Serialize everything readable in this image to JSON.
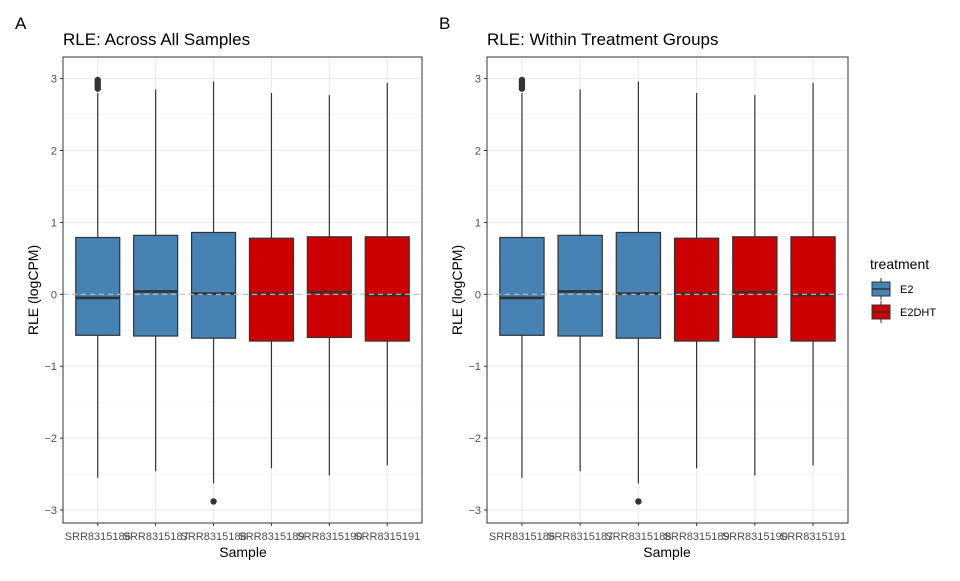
{
  "chart_data": [
    {
      "type": "boxplot",
      "panel_tag": "A",
      "title": "RLE: Across All Samples",
      "xlabel": "Sample",
      "ylabel": "RLE (logCPM)",
      "ylim": [
        -3.18,
        3.3
      ],
      "yticks": [
        -3,
        -2,
        -1,
        0,
        1,
        2,
        3
      ],
      "reference_line": 0,
      "grid": true,
      "boxes": [
        {
          "sample": "SRR8315186",
          "treatment": "E2",
          "q1": -0.57,
          "median": -0.05,
          "q3": 0.79,
          "whisker_low": -2.55,
          "whisker_high": 2.8,
          "outliers": [
            2.86,
            2.89,
            2.92,
            2.95,
            2.98
          ]
        },
        {
          "sample": "SRR8315187",
          "treatment": "E2",
          "q1": -0.58,
          "median": 0.04,
          "q3": 0.82,
          "whisker_low": -2.46,
          "whisker_high": 2.85,
          "outliers": []
        },
        {
          "sample": "SRR8315188",
          "treatment": "E2",
          "q1": -0.61,
          "median": 0.01,
          "q3": 0.86,
          "whisker_low": -2.63,
          "whisker_high": 2.96,
          "outliers": [
            -2.88
          ]
        },
        {
          "sample": "SRR8315189",
          "treatment": "E2DHT",
          "q1": -0.65,
          "median": 0.01,
          "q3": 0.78,
          "whisker_low": -2.42,
          "whisker_high": 2.8,
          "outliers": []
        },
        {
          "sample": "SRR8315190",
          "treatment": "E2DHT",
          "q1": -0.6,
          "median": 0.03,
          "q3": 0.8,
          "whisker_low": -2.52,
          "whisker_high": 2.77,
          "outliers": []
        },
        {
          "sample": "SRR8315191",
          "treatment": "E2DHT",
          "q1": -0.65,
          "median": -0.01,
          "q3": 0.8,
          "whisker_low": -2.38,
          "whisker_high": 2.94,
          "outliers": []
        }
      ]
    },
    {
      "type": "boxplot",
      "panel_tag": "B",
      "title": "RLE: Within Treatment Groups",
      "xlabel": "Sample",
      "ylabel": "RLE (logCPM)",
      "ylim": [
        -3.18,
        3.3
      ],
      "yticks": [
        -3,
        -2,
        -1,
        0,
        1,
        2,
        3
      ],
      "reference_line": 0,
      "grid": true,
      "boxes": [
        {
          "sample": "SRR8315186",
          "treatment": "E2",
          "q1": -0.57,
          "median": -0.05,
          "q3": 0.79,
          "whisker_low": -2.55,
          "whisker_high": 2.8,
          "outliers": [
            2.86,
            2.89,
            2.92,
            2.95,
            2.98
          ]
        },
        {
          "sample": "SRR8315187",
          "treatment": "E2",
          "q1": -0.58,
          "median": 0.04,
          "q3": 0.82,
          "whisker_low": -2.46,
          "whisker_high": 2.85,
          "outliers": []
        },
        {
          "sample": "SRR8315188",
          "treatment": "E2",
          "q1": -0.61,
          "median": 0.01,
          "q3": 0.86,
          "whisker_low": -2.63,
          "whisker_high": 2.96,
          "outliers": [
            -2.88
          ]
        },
        {
          "sample": "SRR8315189",
          "treatment": "E2DHT",
          "q1": -0.65,
          "median": 0.01,
          "q3": 0.78,
          "whisker_low": -2.42,
          "whisker_high": 2.8,
          "outliers": []
        },
        {
          "sample": "SRR8315190",
          "treatment": "E2DHT",
          "q1": -0.6,
          "median": 0.03,
          "q3": 0.8,
          "whisker_low": -2.52,
          "whisker_high": 2.77,
          "outliers": []
        },
        {
          "sample": "SRR8315191",
          "treatment": "E2DHT",
          "q1": -0.65,
          "median": -0.01,
          "q3": 0.8,
          "whisker_low": -2.38,
          "whisker_high": 2.94,
          "outliers": []
        }
      ]
    }
  ],
  "legend": {
    "title": "treatment",
    "position": "right",
    "items": [
      {
        "label": "E2",
        "color": "#4682b4"
      },
      {
        "label": "E2DHT",
        "color": "#cc0000"
      }
    ]
  }
}
